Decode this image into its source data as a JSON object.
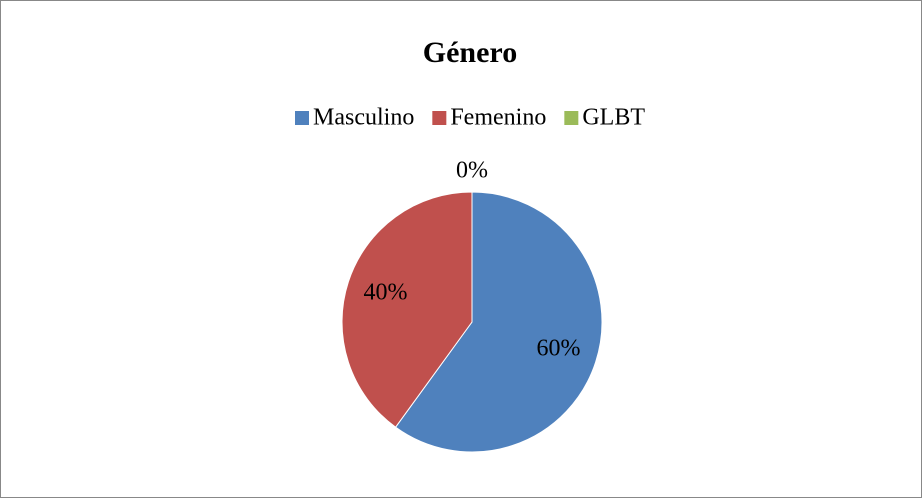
{
  "chart_data": {
    "type": "pie",
    "title": "Género",
    "categories": [
      "Masculino",
      "Femenino",
      "GLBT"
    ],
    "values": [
      60,
      40,
      0
    ],
    "value_labels": [
      "60%",
      "40%",
      "0%"
    ],
    "colors": [
      "#4f81bd",
      "#c0504d",
      "#9bbb59"
    ],
    "legend": "top"
  }
}
